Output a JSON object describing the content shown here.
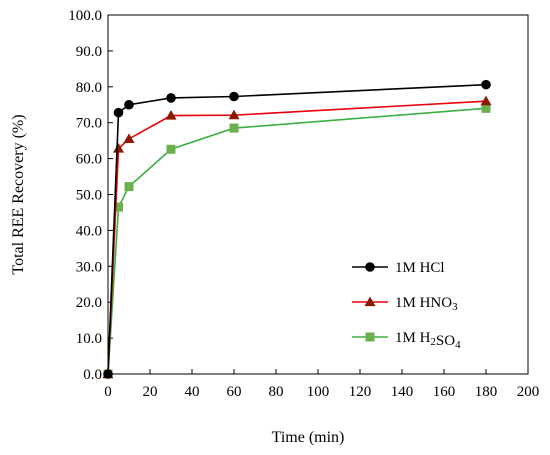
{
  "chart_data": {
    "type": "line",
    "xlabel": "Time (min)",
    "ylabel": "Total REE Recovery (%)",
    "xlim": [
      0,
      200
    ],
    "ylim": [
      0,
      100
    ],
    "x_ticks": [
      "0",
      "20",
      "40",
      "60",
      "80",
      "100",
      "120",
      "140",
      "160",
      "180",
      "200"
    ],
    "y_ticks": [
      "0.0",
      "10.0",
      "20.0",
      "30.0",
      "40.0",
      "50.0",
      "60.0",
      "70.0",
      "80.0",
      "90.0",
      "100.0"
    ],
    "grid": false,
    "legend_position": "bottom-right",
    "series": [
      {
        "name": "1M HCl",
        "name_parts": [
          {
            "t": "1M HCl"
          }
        ],
        "color": "#000000",
        "marker": "circle",
        "x": [
          0,
          5,
          10,
          30,
          60,
          180
        ],
        "y": [
          0.0,
          72.8,
          75.0,
          76.9,
          77.3,
          80.6
        ]
      },
      {
        "name": "1M HNO3",
        "name_parts": [
          {
            "t": "1M HNO"
          },
          {
            "t": "3",
            "sub": true
          }
        ],
        "color": "#e8000b",
        "marker_color": "#8b1a00",
        "marker": "triangle",
        "x": [
          0,
          5,
          10,
          30,
          60,
          180
        ],
        "y": [
          0.0,
          62.8,
          65.5,
          72.0,
          72.1,
          76.0
        ]
      },
      {
        "name": "1M H2SO4",
        "name_parts": [
          {
            "t": "1M H"
          },
          {
            "t": "2",
            "sub": true
          },
          {
            "t": "SO"
          },
          {
            "t": "4",
            "sub": true
          }
        ],
        "color": "#3cb043",
        "marker_color": "#6ab04c",
        "marker": "square",
        "x": [
          0,
          5,
          10,
          30,
          60,
          180
        ],
        "y": [
          0.0,
          46.5,
          52.2,
          62.6,
          68.5,
          74.0
        ]
      }
    ]
  }
}
